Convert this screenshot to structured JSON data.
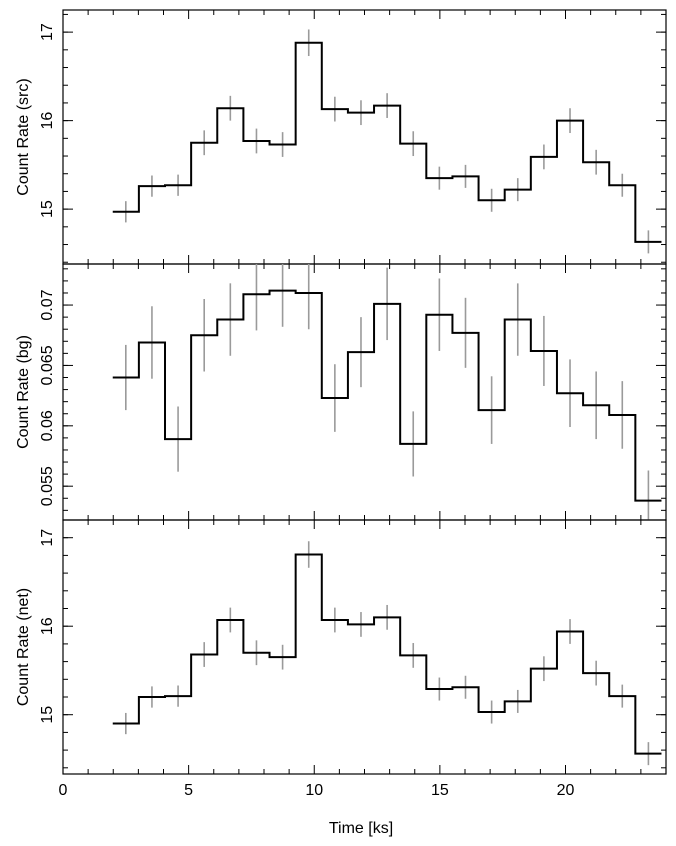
{
  "chart_data": {
    "type": "line",
    "style": "step-with-error-bars",
    "shared_x": {
      "label": "Time [ks]",
      "range": [
        0,
        24
      ],
      "ticks": [
        0,
        5,
        10,
        15,
        20
      ]
    },
    "bin_width": 1.04,
    "x": [
      2.5,
      3.54,
      4.58,
      5.62,
      6.66,
      7.7,
      8.74,
      9.78,
      10.82,
      11.86,
      12.9,
      13.94,
      14.98,
      16.02,
      17.06,
      18.1,
      19.14,
      20.18,
      21.22,
      22.26,
      23.3
    ],
    "panels": [
      {
        "ylabel": "Count Rate (src)",
        "ylim": [
          14.38,
          17.25
        ],
        "yticks": [
          15,
          16,
          17
        ],
        "ytick_labels": [
          "15",
          "16",
          "17"
        ],
        "values": [
          14.97,
          15.26,
          15.27,
          15.75,
          16.14,
          15.77,
          15.73,
          16.88,
          16.13,
          16.09,
          16.17,
          15.74,
          15.35,
          15.37,
          15.1,
          15.22,
          15.59,
          16.0,
          15.53,
          15.27,
          14.63
        ],
        "errors": [
          0.12,
          0.12,
          0.12,
          0.14,
          0.14,
          0.14,
          0.14,
          0.15,
          0.14,
          0.14,
          0.14,
          0.14,
          0.13,
          0.13,
          0.13,
          0.13,
          0.14,
          0.14,
          0.14,
          0.13,
          0.13
        ]
      },
      {
        "ylabel": "Count Rate (bg)",
        "ylim": [
          0.0522,
          0.0734
        ],
        "yticks": [
          0.055,
          0.06,
          0.065,
          0.07
        ],
        "ytick_labels": [
          "0.055",
          "0.06",
          "0.065",
          "0.07"
        ],
        "values": [
          0.064,
          0.0669,
          0.0589,
          0.0675,
          0.0688,
          0.0709,
          0.0712,
          0.071,
          0.0623,
          0.0661,
          0.0701,
          0.0585,
          0.0692,
          0.0677,
          0.0613,
          0.0688,
          0.0662,
          0.0627,
          0.0617,
          0.0609,
          0.0538
        ],
        "errors": [
          0.0027,
          0.003,
          0.0027,
          0.003,
          0.003,
          0.003,
          0.003,
          0.003,
          0.0028,
          0.0029,
          0.003,
          0.0027,
          0.003,
          0.0029,
          0.0028,
          0.003,
          0.0029,
          0.0028,
          0.0028,
          0.0028,
          0.0025
        ]
      },
      {
        "ylabel": "Count Rate (net)",
        "ylim": [
          14.33,
          17.2
        ],
        "yticks": [
          15,
          16,
          17
        ],
        "ytick_labels": [
          "15",
          "16",
          "17"
        ],
        "values": [
          14.9,
          15.2,
          15.21,
          15.68,
          16.07,
          15.7,
          15.65,
          16.81,
          16.07,
          16.02,
          16.1,
          15.67,
          15.29,
          15.31,
          15.03,
          15.15,
          15.52,
          15.94,
          15.47,
          15.21,
          14.56
        ],
        "errors": [
          0.12,
          0.12,
          0.12,
          0.14,
          0.14,
          0.14,
          0.14,
          0.15,
          0.14,
          0.14,
          0.14,
          0.14,
          0.13,
          0.13,
          0.13,
          0.13,
          0.14,
          0.14,
          0.14,
          0.13,
          0.13
        ]
      }
    ],
    "colors": {
      "step_line": "#000000",
      "error_bars": "#9a9a9a",
      "frame": "#000000"
    },
    "grid": false,
    "legend": "none"
  }
}
